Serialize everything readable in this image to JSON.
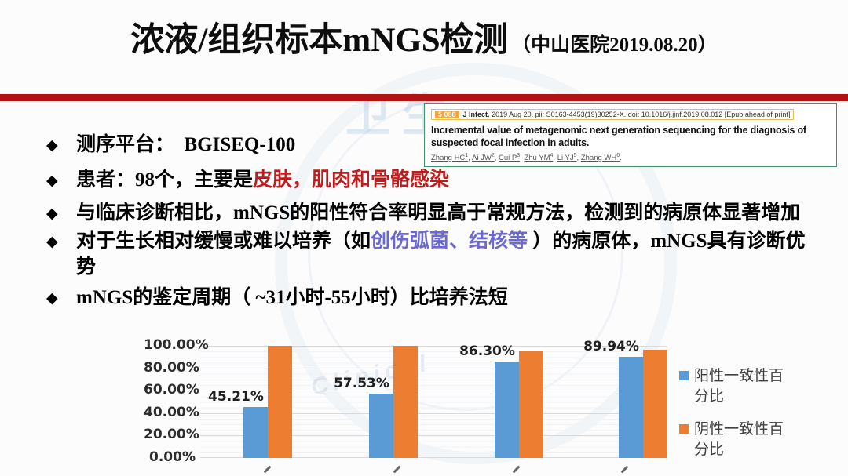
{
  "slide": {
    "title": "浓液/组织标本mNGS检测",
    "title_suffix": "（中山医院2019.08.20）"
  },
  "ui": {
    "bullet_marker": "◆"
  },
  "watermark": {
    "text_top": "卫生",
    "text_curve": "Clinical"
  },
  "citation": {
    "badge": "5 088",
    "journal": "J Infect.",
    "meta": "2019 Aug 20. pii: S0163-4453(19)30252-X. doi: 10.1016/j.jinf.2019.08.012 [Epub ahead of print]",
    "title": "Incremental value of metagenomic next generation sequencing for the diagnosis of suspected focal infection in adults.",
    "authors": [
      {
        "name": "Zhang HC",
        "sup": "1"
      },
      {
        "name": "Ai JW",
        "sup": "2"
      },
      {
        "name": "Cui P",
        "sup": "3"
      },
      {
        "name": "Zhu YM",
        "sup": "4"
      },
      {
        "name": "Li YJ",
        "sup": "5"
      },
      {
        "name": "Zhang WH",
        "sup": "6"
      }
    ]
  },
  "bullets": [
    {
      "segments": [
        {
          "text": "测序平台：  BGISEQ-100",
          "color": "black"
        }
      ]
    },
    {
      "segments": [
        {
          "text": "患者：98个，主要是",
          "color": "black"
        },
        {
          "text": "皮肤，肌肉和骨骼感染",
          "color": "red"
        }
      ]
    },
    {
      "segments": [
        {
          "text": "与临床诊断相比，mNGS的阳性符合率明显高于常规方法，检测到的病原体显著增加",
          "color": "black"
        }
      ]
    },
    {
      "segments": [
        {
          "text": "对于生长相对缓慢或难以培养（如",
          "color": "black"
        },
        {
          "text": "创伤弧菌、结核等 ",
          "color": "blue"
        },
        {
          "text": "）的病原体，mNGS具有诊断优势",
          "color": "black"
        }
      ]
    },
    {
      "segments": [
        {
          "text": "mNGS的鉴定周期（ ~31小时-55小时）比培养法短",
          "color": "black"
        }
      ]
    }
  ],
  "chart_data": {
    "type": "bar",
    "categories": [
      "",
      "",
      "",
      ""
    ],
    "x_labels_clipped": true,
    "series": [
      {
        "name": "阳性一致性百分比",
        "color": "#5B9BD5",
        "values": [
          45.21,
          57.53,
          86.3,
          89.94
        ],
        "labels": [
          "45.21%",
          "57.53%",
          "86.30%",
          "89.94%"
        ]
      },
      {
        "name": "阴性一致性百分比",
        "color": "#ED7D31",
        "values": [
          100.0,
          100.0,
          95.0,
          96.5
        ],
        "labels": [
          "",
          "",
          "",
          ""
        ]
      }
    ],
    "ylim": [
      0,
      100
    ],
    "yticks": [
      "0.00%",
      "20.00%",
      "40.00%",
      "60.00%",
      "80.00%",
      "100.00%"
    ],
    "grid": true,
    "legend_position": "right"
  }
}
